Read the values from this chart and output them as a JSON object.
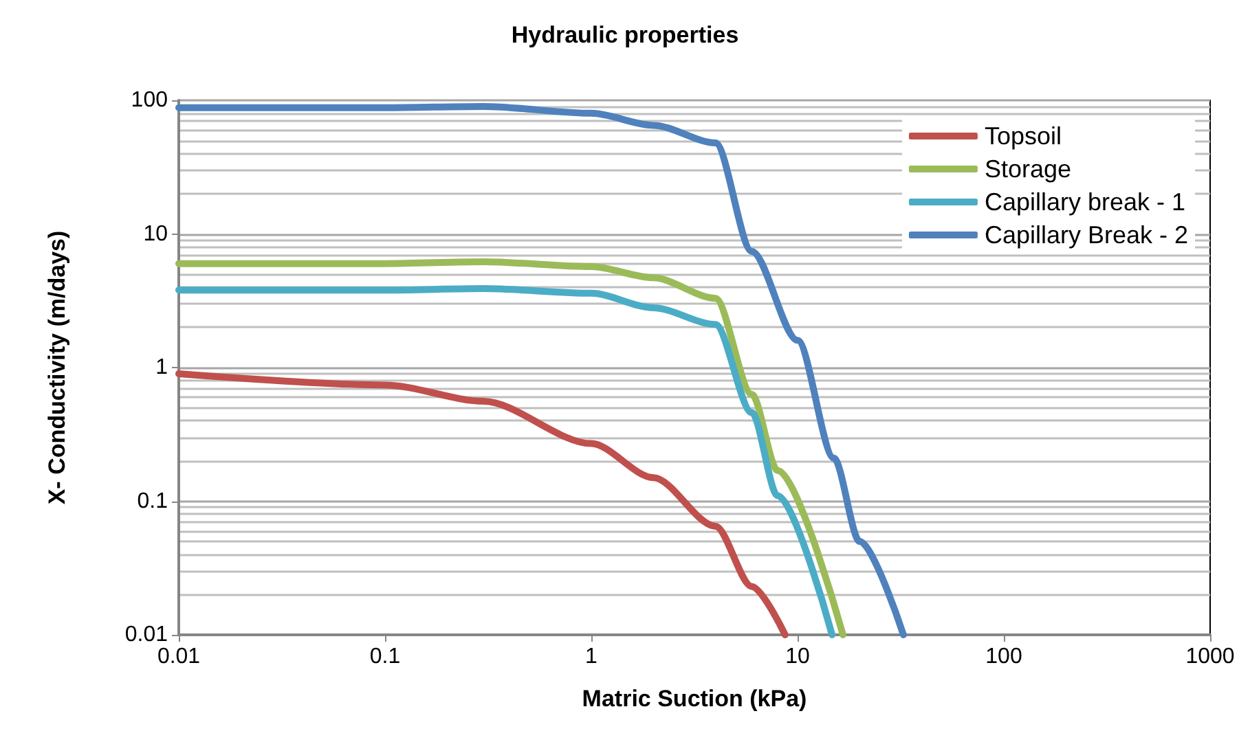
{
  "chart_data": {
    "type": "line",
    "title": "Hydraulic properties",
    "xlabel": "Matric Suction (kPa)",
    "ylabel": "X- Conductivity (m/days)",
    "log": "xy",
    "grid": "y",
    "legend": "top right",
    "marker": "none",
    "line_style": "solid",
    "xlim": [
      0.01,
      1000
    ],
    "xticks": [
      0.01,
      0.1,
      1,
      10,
      100,
      1000
    ],
    "ylim": [
      0.01,
      100
    ],
    "yticks": [
      0.01,
      0.1,
      1,
      10,
      100
    ],
    "series": [
      {
        "name": "Topsoil",
        "color": "#c0504d",
        "x": [
          0.01,
          0.1,
          0.3,
          1,
          2,
          4,
          6,
          8.7
        ],
        "values": [
          0.9,
          0.74,
          0.56,
          0.27,
          0.15,
          0.065,
          0.023,
          0.01
        ]
      },
      {
        "name": "Storage",
        "color": "#9bbb59",
        "x": [
          0.01,
          0.1,
          0.3,
          1,
          2,
          4,
          6,
          8,
          16.6
        ],
        "values": [
          6,
          6,
          6.2,
          5.7,
          4.7,
          3.3,
          0.63,
          0.17,
          0.01
        ]
      },
      {
        "name": "Capillary break - 1",
        "color": "#4bacc6",
        "x": [
          0.01,
          0.1,
          0.3,
          1,
          2,
          4,
          6,
          8,
          14.7
        ],
        "values": [
          3.8,
          3.8,
          3.9,
          3.6,
          2.8,
          2.1,
          0.46,
          0.11,
          0.01
        ]
      },
      {
        "name": "Capillary Break - 2",
        "color": "#4f81bd",
        "x": [
          0.01,
          0.1,
          0.3,
          1,
          2,
          4,
          6,
          10,
          15,
          20,
          32.6
        ],
        "values": [
          88,
          88,
          90,
          80,
          65,
          48,
          7.4,
          1.6,
          0.21,
          0.05,
          0.01
        ]
      }
    ]
  }
}
